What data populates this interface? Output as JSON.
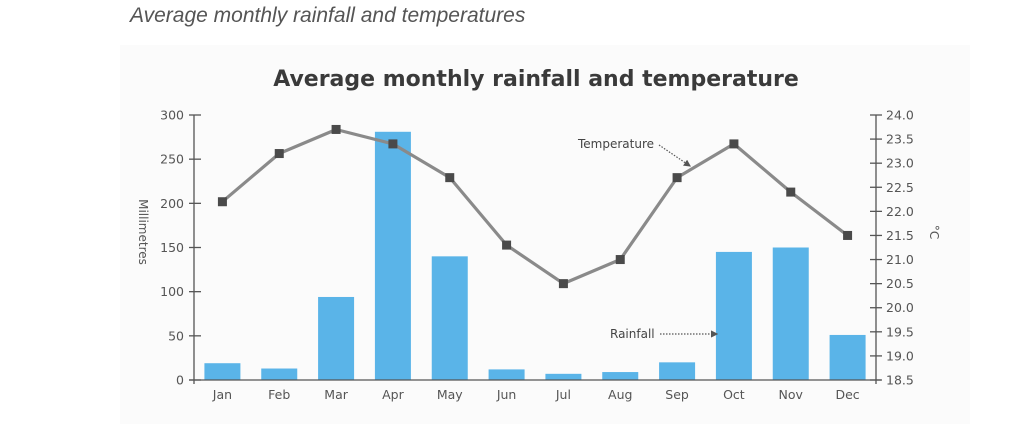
{
  "page": {
    "caption": "Average monthly rainfall and temperatures"
  },
  "chart_data": {
    "type": "bar+line",
    "title": "Average monthly rainfall and temperature",
    "categories": [
      "Jan",
      "Feb",
      "Mar",
      "Apr",
      "May",
      "Jun",
      "Jul",
      "Aug",
      "Sep",
      "Oct",
      "Nov",
      "Dec"
    ],
    "series": [
      {
        "name": "Rainfall",
        "type": "bar",
        "axis": "left",
        "unit": "mm",
        "color": "#5ab4e8",
        "values": [
          19,
          13,
          94,
          281,
          140,
          12,
          7,
          9,
          20,
          145,
          150,
          51
        ]
      },
      {
        "name": "Temperature",
        "type": "line",
        "axis": "right",
        "unit": "°C",
        "color": "#8a8a8a",
        "marker_color": "#4a4a4a",
        "values": [
          22.2,
          23.2,
          23.7,
          23.4,
          22.7,
          21.3,
          20.5,
          21.0,
          22.7,
          23.4,
          22.4,
          21.5
        ]
      }
    ],
    "left_axis": {
      "label": "Millimetres",
      "range": [
        0,
        300
      ],
      "ticks": [
        0,
        50,
        100,
        150,
        200,
        250,
        300
      ]
    },
    "right_axis": {
      "label": "°C",
      "range": [
        18.5,
        24.0
      ],
      "ticks": [
        "18.5",
        "19.0",
        "19.5",
        "20.0",
        "20.5",
        "21.0",
        "21.5",
        "22.0",
        "22.5",
        "23.0",
        "23.5",
        "24.0"
      ]
    },
    "annotations": [
      {
        "text": "Temperature",
        "points_to": "Temperature",
        "style": "dotted-arrow"
      },
      {
        "text": "Rainfall",
        "points_to": "Rainfall",
        "style": "dotted-arrow"
      }
    ],
    "grid": false,
    "legend": "none"
  }
}
